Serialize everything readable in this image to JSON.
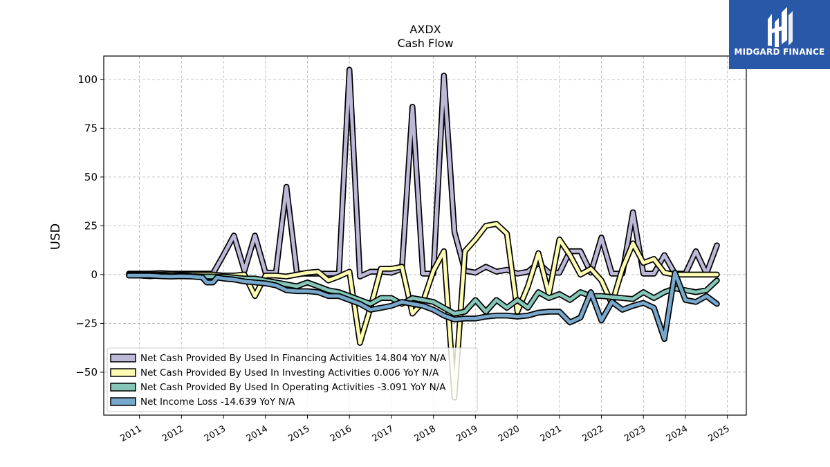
{
  "brand": {
    "name": "MIDGARD FINANCE",
    "bg_color": "#2a58a8"
  },
  "chart_data": {
    "type": "line",
    "title": "AXDX",
    "subtitle": "Cash Flow",
    "ylabel": "USD",
    "xlabel": "",
    "ylim": [
      -72,
      112
    ],
    "xlim": [
      2010.15,
      2025.45
    ],
    "yticks": [
      -50,
      -25,
      0,
      25,
      50,
      75,
      100
    ],
    "ytick_labels": [
      "−50",
      "−25",
      "0",
      "25",
      "50",
      "75",
      "100"
    ],
    "xticks": [
      2011,
      2012,
      2013,
      2014,
      2015,
      2016,
      2017,
      2018,
      2019,
      2020,
      2021,
      2022,
      2023,
      2024,
      2025
    ],
    "xtick_labels": [
      "2011",
      "2012",
      "2013",
      "2014",
      "2015",
      "2016",
      "2017",
      "2018",
      "2019",
      "2020",
      "2021",
      "2022",
      "2023",
      "2024",
      "2025"
    ],
    "grid": true,
    "legend_position": "lower-left",
    "series": [
      {
        "name": "Net Cash Provided By Used In Financing Activities  14.804 YoY N/A",
        "color": "#bcb8d8",
        "points": [
          [
            2010.75,
            0.5
          ],
          [
            2011.0,
            0.5
          ],
          [
            2011.25,
            0.5
          ],
          [
            2011.5,
            0.8
          ],
          [
            2011.75,
            0.5
          ],
          [
            2012.0,
            0.5
          ],
          [
            2012.25,
            0.5
          ],
          [
            2012.5,
            0.5
          ],
          [
            2012.75,
            0.5
          ],
          [
            2013.0,
            10
          ],
          [
            2013.25,
            20
          ],
          [
            2013.5,
            2
          ],
          [
            2013.75,
            20
          ],
          [
            2014.0,
            1
          ],
          [
            2014.25,
            1
          ],
          [
            2014.5,
            45
          ],
          [
            2014.75,
            0.5
          ],
          [
            2015.0,
            0.5
          ],
          [
            2015.25,
            0.5
          ],
          [
            2015.5,
            0.5
          ],
          [
            2015.75,
            0.5
          ],
          [
            2016.0,
            105
          ],
          [
            2016.25,
            -1
          ],
          [
            2016.5,
            1.5
          ],
          [
            2016.75,
            1.5
          ],
          [
            2017.0,
            1.0
          ],
          [
            2017.25,
            3
          ],
          [
            2017.5,
            86
          ],
          [
            2017.75,
            0.5
          ],
          [
            2018.0,
            0.5
          ],
          [
            2018.25,
            102
          ],
          [
            2018.5,
            22
          ],
          [
            2018.75,
            2
          ],
          [
            2019.0,
            1
          ],
          [
            2019.25,
            4
          ],
          [
            2019.5,
            1.5
          ],
          [
            2019.75,
            2.5
          ],
          [
            2020.0,
            0.5
          ],
          [
            2020.25,
            1.5
          ],
          [
            2020.5,
            6
          ],
          [
            2020.75,
            1
          ],
          [
            2021.0,
            1
          ],
          [
            2021.25,
            12
          ],
          [
            2021.5,
            12
          ],
          [
            2021.75,
            1
          ],
          [
            2022.0,
            19
          ],
          [
            2022.25,
            0.5
          ],
          [
            2022.5,
            0.5
          ],
          [
            2022.75,
            32
          ],
          [
            2023.0,
            0.5
          ],
          [
            2023.25,
            0.5
          ],
          [
            2023.5,
            10
          ],
          [
            2023.75,
            0.5
          ],
          [
            2024.0,
            0.5
          ],
          [
            2024.25,
            12
          ],
          [
            2024.5,
            0.5
          ],
          [
            2024.75,
            15
          ]
        ]
      },
      {
        "name": "Net Cash Provided By Used In Investing Activities  0.006 YoY N/A",
        "color": "#fdfcb3",
        "points": [
          [
            2010.75,
            0
          ],
          [
            2011.0,
            0
          ],
          [
            2011.25,
            0
          ],
          [
            2011.5,
            0
          ],
          [
            2011.75,
            0
          ],
          [
            2012.0,
            0
          ],
          [
            2012.25,
            0
          ],
          [
            2012.5,
            0
          ],
          [
            2012.75,
            0
          ],
          [
            2013.0,
            -0.5
          ],
          [
            2013.25,
            -0.5
          ],
          [
            2013.5,
            0
          ],
          [
            2013.75,
            -11
          ],
          [
            2014.0,
            -0.5
          ],
          [
            2014.25,
            -0.5
          ],
          [
            2014.5,
            -1
          ],
          [
            2014.75,
            0
          ],
          [
            2015.0,
            1
          ],
          [
            2015.25,
            1.5
          ],
          [
            2015.5,
            -3
          ],
          [
            2015.75,
            -1
          ],
          [
            2016.0,
            1.5
          ],
          [
            2016.25,
            -35
          ],
          [
            2016.5,
            -17
          ],
          [
            2016.75,
            3
          ],
          [
            2017.0,
            3
          ],
          [
            2017.25,
            4
          ],
          [
            2017.5,
            -20
          ],
          [
            2017.75,
            -14
          ],
          [
            2018.0,
            2
          ],
          [
            2018.25,
            12
          ],
          [
            2018.5,
            -63
          ],
          [
            2018.75,
            12
          ],
          [
            2019.0,
            18
          ],
          [
            2019.25,
            25
          ],
          [
            2019.5,
            26
          ],
          [
            2019.75,
            21
          ],
          [
            2020.0,
            -19
          ],
          [
            2020.25,
            -6
          ],
          [
            2020.5,
            11
          ],
          [
            2020.75,
            -10
          ],
          [
            2021.0,
            18
          ],
          [
            2021.25,
            10
          ],
          [
            2021.5,
            0
          ],
          [
            2021.75,
            3
          ],
          [
            2022.0,
            -3
          ],
          [
            2022.25,
            -15
          ],
          [
            2022.5,
            3
          ],
          [
            2022.75,
            16
          ],
          [
            2023.0,
            6
          ],
          [
            2023.25,
            8
          ],
          [
            2023.5,
            1
          ],
          [
            2023.75,
            0
          ],
          [
            2024.0,
            0
          ],
          [
            2024.25,
            0
          ],
          [
            2024.5,
            0
          ],
          [
            2024.75,
            0
          ]
        ]
      },
      {
        "name": "Net Cash Provided By Used In Operating Activities  -3.091 YoY N/A",
        "color": "#85c6b8",
        "points": [
          [
            2010.75,
            -0.5
          ],
          [
            2011.0,
            -0.5
          ],
          [
            2011.25,
            -0.8
          ],
          [
            2011.5,
            -0.5
          ],
          [
            2011.75,
            -0.8
          ],
          [
            2012.0,
            -0.5
          ],
          [
            2012.25,
            -0.8
          ],
          [
            2012.5,
            -1
          ],
          [
            2012.75,
            -1
          ],
          [
            2013.0,
            -1
          ],
          [
            2013.25,
            -1.5
          ],
          [
            2013.5,
            -2
          ],
          [
            2013.75,
            -2
          ],
          [
            2014.0,
            -3
          ],
          [
            2014.25,
            -4
          ],
          [
            2014.5,
            -5
          ],
          [
            2014.75,
            -6
          ],
          [
            2015.0,
            -4
          ],
          [
            2015.25,
            -6
          ],
          [
            2015.5,
            -8
          ],
          [
            2015.75,
            -9
          ],
          [
            2016.0,
            -11
          ],
          [
            2016.25,
            -13
          ],
          [
            2016.5,
            -15
          ],
          [
            2016.75,
            -12
          ],
          [
            2017.0,
            -12
          ],
          [
            2017.25,
            -15
          ],
          [
            2017.5,
            -12
          ],
          [
            2017.75,
            -13
          ],
          [
            2018.0,
            -14
          ],
          [
            2018.25,
            -17
          ],
          [
            2018.5,
            -20
          ],
          [
            2018.75,
            -19
          ],
          [
            2019.0,
            -13
          ],
          [
            2019.25,
            -19
          ],
          [
            2019.5,
            -13
          ],
          [
            2019.75,
            -17
          ],
          [
            2020.0,
            -13
          ],
          [
            2020.25,
            -17
          ],
          [
            2020.5,
            -9
          ],
          [
            2020.75,
            -12
          ],
          [
            2021.0,
            -10
          ],
          [
            2021.25,
            -13
          ],
          [
            2021.5,
            -9
          ],
          [
            2021.75,
            -11
          ],
          [
            2022.0,
            -11
          ],
          [
            2022.25,
            -11.5
          ],
          [
            2022.5,
            -12
          ],
          [
            2022.75,
            -12.5
          ],
          [
            2023.0,
            -9
          ],
          [
            2023.25,
            -12
          ],
          [
            2023.5,
            -9
          ],
          [
            2023.75,
            -7
          ],
          [
            2024.0,
            -8
          ],
          [
            2024.25,
            -9
          ],
          [
            2024.5,
            -8
          ],
          [
            2024.75,
            -3
          ]
        ]
      },
      {
        "name": "Net Income Loss  -14.639 YoY N/A",
        "color": "#78a8cc",
        "points": [
          [
            2010.75,
            -0.5
          ],
          [
            2011.0,
            -0.5
          ],
          [
            2011.25,
            -0.5
          ],
          [
            2011.5,
            -0.8
          ],
          [
            2011.75,
            -1
          ],
          [
            2012.0,
            -0.8
          ],
          [
            2012.25,
            -1
          ],
          [
            2012.5,
            -1.5
          ],
          [
            2012.6,
            -4
          ],
          [
            2012.75,
            -4
          ],
          [
            2012.85,
            -1.5
          ],
          [
            2013.0,
            -2
          ],
          [
            2013.25,
            -2.5
          ],
          [
            2013.5,
            -3.5
          ],
          [
            2013.75,
            -4
          ],
          [
            2014.0,
            -4.5
          ],
          [
            2014.25,
            -5.5
          ],
          [
            2014.5,
            -8
          ],
          [
            2014.75,
            -8.5
          ],
          [
            2015.0,
            -8.5
          ],
          [
            2015.25,
            -9
          ],
          [
            2015.5,
            -11
          ],
          [
            2015.75,
            -11
          ],
          [
            2016.0,
            -13
          ],
          [
            2016.25,
            -15
          ],
          [
            2016.5,
            -18
          ],
          [
            2016.75,
            -17
          ],
          [
            2017.0,
            -16
          ],
          [
            2017.25,
            -14
          ],
          [
            2017.5,
            -15
          ],
          [
            2017.75,
            -16
          ],
          [
            2018.0,
            -18
          ],
          [
            2018.25,
            -21
          ],
          [
            2018.5,
            -23
          ],
          [
            2018.75,
            -22.5
          ],
          [
            2019.0,
            -22.5
          ],
          [
            2019.25,
            -21.5
          ],
          [
            2019.5,
            -21
          ],
          [
            2019.75,
            -21
          ],
          [
            2020.0,
            -21.5
          ],
          [
            2020.25,
            -21
          ],
          [
            2020.5,
            -19.5
          ],
          [
            2020.75,
            -19
          ],
          [
            2021.0,
            -19
          ],
          [
            2021.25,
            -24.5
          ],
          [
            2021.5,
            -22
          ],
          [
            2021.75,
            -9
          ],
          [
            2022.0,
            -23.5
          ],
          [
            2022.25,
            -14
          ],
          [
            2022.5,
            -18
          ],
          [
            2022.75,
            -16
          ],
          [
            2023.0,
            -14.5
          ],
          [
            2023.25,
            -17
          ],
          [
            2023.5,
            -33
          ],
          [
            2023.75,
            1
          ],
          [
            2024.0,
            -13
          ],
          [
            2024.25,
            -14
          ],
          [
            2024.5,
            -11
          ],
          [
            2024.75,
            -15
          ]
        ]
      }
    ]
  }
}
